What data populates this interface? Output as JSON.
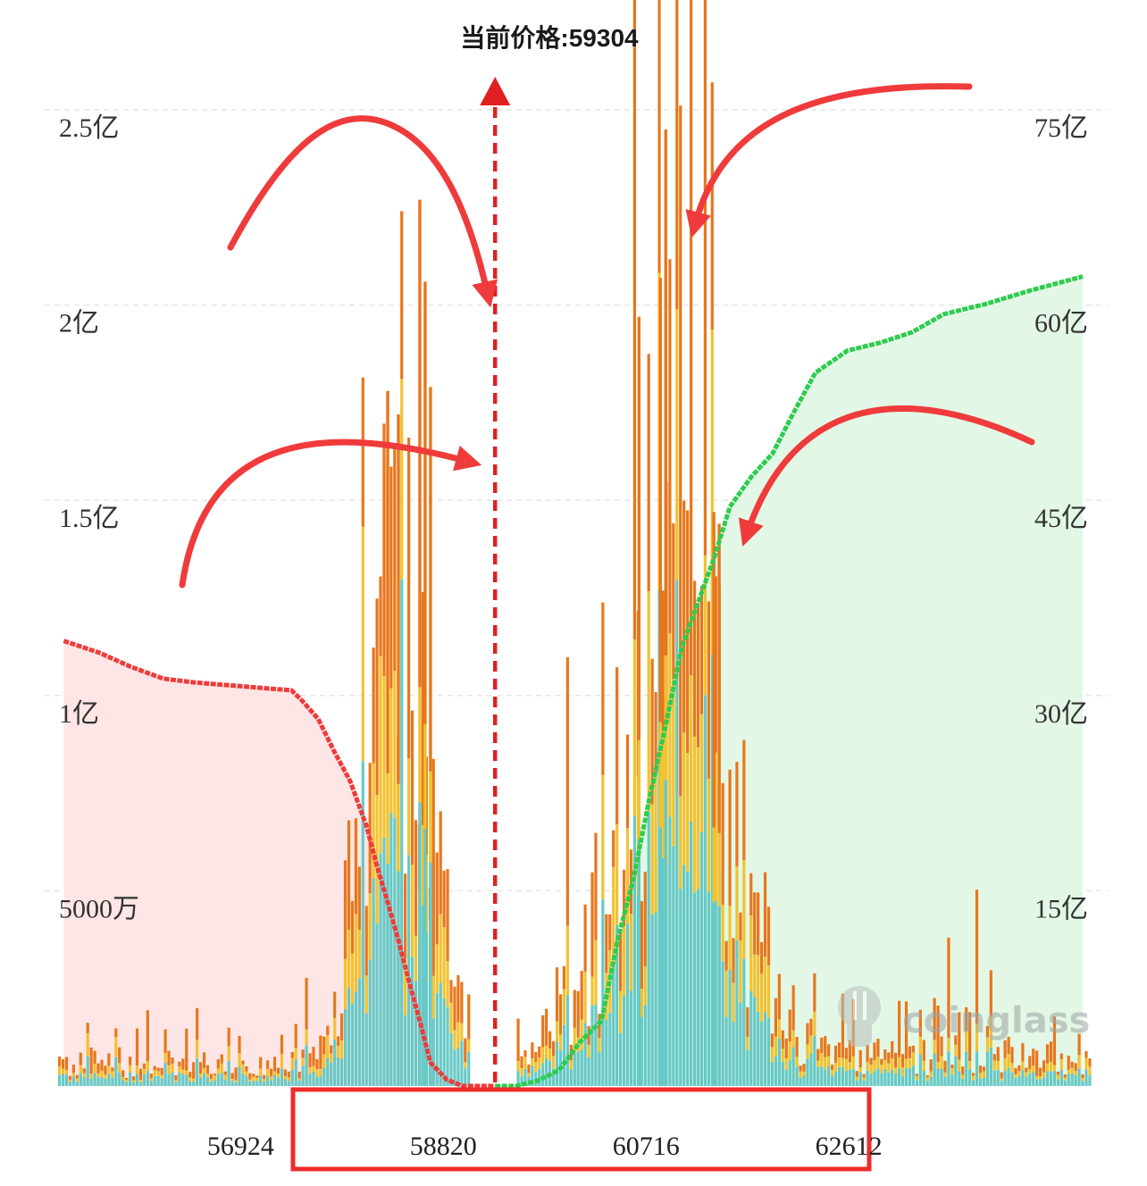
{
  "chart_data": {
    "type": "bar",
    "title": "当前价格:59304",
    "current_price": 59304,
    "x_axis": {
      "ticks": [
        "56924",
        "58820",
        "60716",
        "62612"
      ],
      "range": [
        55200,
        64900
      ]
    },
    "y_axis_left": {
      "ticks": [
        "5000万",
        "1亿",
        "1.5亿",
        "2亿",
        "2.5亿"
      ],
      "range": [
        0,
        250000000
      ]
    },
    "y_axis_right": {
      "ticks": [
        "15亿",
        "30亿",
        "45亿",
        "60亿",
        "75亿"
      ],
      "range": [
        0,
        7500000000
      ]
    },
    "grid": true,
    "colors": {
      "bar_base": "#67c9c6",
      "bar_mid": "#f2c230",
      "bar_top": "#e8761c",
      "short_cumulative": "#ef3b3b",
      "short_fill": "#fde6e5",
      "long_cumulative": "#2ecc4f",
      "long_fill": "#e3f7e6",
      "annotation": "#ef3b3b"
    },
    "series": [
      {
        "kind": "cumulative",
        "side": "left",
        "axis": "right",
        "points": [
          [
            55270,
            3420000000
          ],
          [
            55600,
            3330000000
          ],
          [
            55900,
            3220000000
          ],
          [
            56200,
            3130000000
          ],
          [
            56500,
            3100000000
          ],
          [
            56800,
            3080000000
          ],
          [
            57100,
            3060000000
          ],
          [
            57400,
            3040000000
          ],
          [
            57500,
            2960000000
          ],
          [
            57650,
            2820000000
          ],
          [
            57800,
            2570000000
          ],
          [
            57950,
            2340000000
          ],
          [
            58100,
            2000000000
          ],
          [
            58200,
            1690000000
          ],
          [
            58300,
            1410000000
          ],
          [
            58400,
            1120000000
          ],
          [
            58500,
            800000000
          ],
          [
            58600,
            500000000
          ],
          [
            58700,
            180000000
          ],
          [
            58850,
            50000000
          ],
          [
            59000,
            0
          ],
          [
            59304,
            0
          ]
        ]
      },
      {
        "kind": "cumulative",
        "side": "right",
        "axis": "right",
        "points": [
          [
            59304,
            0
          ],
          [
            59500,
            0
          ],
          [
            59700,
            40000000
          ],
          [
            59900,
            120000000
          ],
          [
            60100,
            340000000
          ],
          [
            60300,
            500000000
          ],
          [
            60450,
            1120000000
          ],
          [
            60600,
            1600000000
          ],
          [
            60750,
            2220000000
          ],
          [
            60900,
            2770000000
          ],
          [
            61050,
            3370000000
          ],
          [
            61200,
            3710000000
          ],
          [
            61350,
            4050000000
          ],
          [
            61500,
            4450000000
          ],
          [
            61700,
            4680000000
          ],
          [
            61900,
            4860000000
          ],
          [
            62100,
            5180000000
          ],
          [
            62300,
            5480000000
          ],
          [
            62600,
            5650000000
          ],
          [
            62900,
            5710000000
          ],
          [
            63200,
            5790000000
          ],
          [
            63500,
            5930000000
          ],
          [
            63900,
            6010000000
          ],
          [
            64300,
            6110000000
          ],
          [
            64800,
            6220000000
          ]
        ]
      }
    ],
    "bar_peaks": [
      {
        "x": 58600,
        "value": 227000000
      },
      {
        "x": 58650,
        "value": 206000000
      },
      {
        "x": 58700,
        "value": 179000000
      },
      {
        "x": 58300,
        "value": 178000000
      },
      {
        "x": 58400,
        "value": 172000000
      },
      {
        "x": 60900,
        "value": 245000000
      },
      {
        "x": 60850,
        "value": 207000000
      },
      {
        "x": 60650,
        "value": 197000000
      },
      {
        "x": 61350,
        "value": 147000000
      },
      {
        "x": 61400,
        "value": 144000000
      }
    ]
  },
  "watermark": "coinglass"
}
